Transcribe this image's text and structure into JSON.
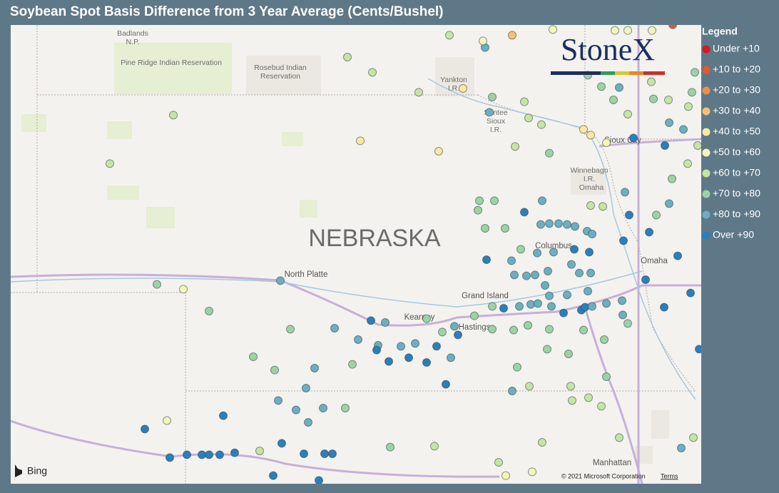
{
  "title": "Soybean Spot Basis Difference from 3 Year Average (Cents/Bushel)",
  "legend": {
    "title": "Legend",
    "items": [
      {
        "label": "Under +10",
        "color": "#d7191c"
      },
      {
        "label": "+10 to +20",
        "color": "#e8562c"
      },
      {
        "label": "+20 to +30",
        "color": "#f28e47"
      },
      {
        "label": "+30 to +40",
        "color": "#f6c172"
      },
      {
        "label": "+40 to +50",
        "color": "#fbe89e"
      },
      {
        "label": "+50 to +60",
        "color": "#f3f6b6"
      },
      {
        "label": "+60 to +70",
        "color": "#c6e5a1"
      },
      {
        "label": "+70 to +80",
        "color": "#9cd3a4"
      },
      {
        "label": "+80 to +90",
        "color": "#6cafbf"
      },
      {
        "label": "Over +90",
        "color": "#2b7fba"
      }
    ]
  },
  "map": {
    "logo": "StoneX",
    "provider": "Bing",
    "attribution": "© 2021 Microsoft Corporation",
    "terms": "Terms",
    "state": "NEBRASKA",
    "labels": [
      "Badlands",
      "N.P.",
      "Pine Ridge Indian Reservation",
      "Rosebud Indian",
      "Reservation",
      "Yankton",
      "I.R.",
      "Santee",
      "Sioux",
      "I.R.",
      "Sioux City",
      "Winnebago",
      "I.R.",
      "Omaha",
      "Columbus",
      "Omaha",
      "North Platte",
      "Grand Island",
      "Kearney",
      "Hastings",
      "Manhattan"
    ],
    "dots": [
      [
        -101.07,
        41.05,
        8
      ],
      [
        -102.43,
        40.96,
        5
      ],
      [
        -102.8,
        41.01,
        7
      ],
      [
        -102.07,
        40.73,
        7
      ],
      [
        -102.57,
        42.79,
        6
      ],
      [
        -103.46,
        42.28,
        6
      ],
      [
        -100.13,
        43.4,
        6
      ],
      [
        -99.78,
        43.24,
        6
      ],
      [
        -99.95,
        42.52,
        4
      ],
      [
        -98.85,
        42.41,
        4
      ],
      [
        -98.51,
        43.07,
        4
      ],
      [
        -99.13,
        43.03,
        6
      ],
      [
        -98.1,
        42.98,
        7
      ],
      [
        -98.2,
        43.5,
        8
      ],
      [
        -97.82,
        43.63,
        3
      ],
      [
        -97.65,
        42.93,
        6
      ],
      [
        -98.14,
        42.82,
        8
      ],
      [
        -99.8,
        40.63,
        9
      ],
      [
        -99.6,
        40.61,
        8
      ],
      [
        -99.98,
        40.43,
        8
      ],
      [
        -99.55,
        40.2,
        9
      ],
      [
        -99.27,
        40.24,
        9
      ],
      [
        -98.75,
        39.96,
        9
      ],
      [
        -98.58,
        40.48,
        9
      ],
      [
        -98.18,
        41.27,
        9
      ],
      [
        -97.65,
        41.77,
        9
      ],
      [
        -97.4,
        41.89,
        8
      ],
      [
        -96.95,
        41.38,
        9
      ],
      [
        -96.74,
        41.35,
        9
      ],
      [
        -96.18,
        41.74,
        9
      ],
      [
        -96.26,
        41.47,
        9
      ],
      [
        -95.9,
        41.56,
        9
      ],
      [
        -95.68,
        42.47,
        9
      ],
      [
        -95.5,
        41.31,
        9
      ],
      [
        -95.32,
        40.92,
        9
      ],
      [
        -95.69,
        40.77,
        9
      ],
      [
        -95.95,
        41.06,
        9
      ],
      [
        -96.12,
        42.55,
        9
      ],
      [
        -101.87,
        39.63,
        9
      ],
      [
        -102.97,
        39.49,
        9
      ],
      [
        -102.62,
        39.19,
        9
      ],
      [
        -102.38,
        39.22,
        9
      ],
      [
        -102.17,
        39.22,
        9
      ],
      [
        -102.07,
        39.22,
        9
      ],
      [
        -101.92,
        39.22,
        9
      ],
      [
        -101.71,
        39.24,
        9
      ],
      [
        -101.05,
        39.34,
        9
      ],
      [
        -101.17,
        39.0,
        9
      ],
      [
        -100.53,
        38.95,
        9
      ],
      [
        -100.74,
        39.23,
        9
      ],
      [
        -100.45,
        39.23,
        9
      ],
      [
        -100.34,
        39.23,
        9
      ],
      [
        -100.85,
        39.69,
        8
      ],
      [
        -100.47,
        39.71,
        8
      ],
      [
        -100.68,
        39.56,
        8
      ],
      [
        -100.31,
        40.55,
        8
      ],
      [
        -100.59,
        40.13,
        8
      ],
      [
        -100.71,
        39.92,
        8
      ],
      [
        -101.1,
        39.79,
        8
      ],
      [
        -101.45,
        40.25,
        7
      ],
      [
        -101.15,
        40.11,
        7
      ],
      [
        -100.93,
        40.54,
        7
      ],
      [
        -100.16,
        39.71,
        7
      ],
      [
        -100.06,
        40.17,
        7
      ],
      [
        -101.36,
        39.26,
        6
      ],
      [
        -102.66,
        39.58,
        5
      ],
      [
        -99.53,
        39.3,
        7
      ],
      [
        -98.91,
        39.31,
        6
      ],
      [
        -97.91,
        39.0,
        5
      ],
      [
        -97.54,
        39.04,
        5
      ],
      [
        -97.33,
        40.33,
        7
      ],
      [
        -97.03,
        40.28,
        7
      ],
      [
        -97.82,
        39.89,
        8
      ],
      [
        -97.58,
        39.94,
        6
      ],
      [
        -97.0,
        39.94,
        6
      ],
      [
        -96.75,
        39.82,
        6
      ],
      [
        -96.98,
        39.79,
        6
      ],
      [
        -96.57,
        39.73,
        6
      ],
      [
        -96.32,
        39.4,
        6
      ],
      [
        -95.45,
        39.29,
        8
      ],
      [
        -95.2,
        40.33,
        9
      ],
      [
        -95.28,
        39.4,
        6
      ],
      [
        -97.4,
        39.35,
        6
      ],
      [
        -98.01,
        39.14,
        6
      ],
      [
        -97.75,
        40.14,
        7
      ],
      [
        -96.5,
        40.04,
        7
      ],
      [
        -96.2,
        40.6,
        7
      ],
      [
        -96.53,
        40.43,
        7
      ],
      [
        -96.82,
        40.53,
        7
      ],
      [
        -97.3,
        40.54,
        7
      ],
      [
        -97.6,
        40.58,
        7
      ],
      [
        -97.8,
        40.53,
        7
      ],
      [
        -98.1,
        40.54,
        7
      ],
      [
        -98.35,
        40.68,
        7
      ],
      [
        -98.1,
        40.78,
        7
      ],
      [
        -97.94,
        40.76,
        9
      ],
      [
        -97.72,
        40.78,
        8
      ],
      [
        -97.56,
        40.8,
        8
      ],
      [
        -97.46,
        40.81,
        8
      ],
      [
        -97.27,
        40.78,
        8
      ],
      [
        -96.85,
        40.74,
        9
      ],
      [
        -96.8,
        40.77,
        9
      ],
      [
        -96.7,
        40.78,
        8
      ],
      [
        -97.1,
        40.71,
        9
      ],
      [
        -97.05,
        40.9,
        8
      ],
      [
        -97.3,
        40.89,
        8
      ],
      [
        -97.36,
        41.0,
        8
      ],
      [
        -97.32,
        41.15,
        8
      ],
      [
        -97.5,
        41.11,
        8
      ],
      [
        -97.62,
        41.1,
        8
      ],
      [
        -97.79,
        41.11,
        8
      ],
      [
        -97.83,
        41.26,
        8
      ],
      [
        -97.7,
        41.38,
        7
      ],
      [
        -97.47,
        41.34,
        8
      ],
      [
        -97.24,
        41.35,
        8
      ],
      [
        -96.99,
        41.22,
        8
      ],
      [
        -96.88,
        41.13,
        8
      ],
      [
        -96.72,
        41.13,
        8
      ],
      [
        -96.76,
        40.94,
        8
      ],
      [
        -96.5,
        40.81,
        8
      ],
      [
        -96.27,
        40.69,
        8
      ],
      [
        -96.28,
        40.84,
        8
      ],
      [
        -97.42,
        41.64,
        8
      ],
      [
        -97.3,
        41.65,
        8
      ],
      [
        -97.17,
        41.65,
        8
      ],
      [
        -97.05,
        41.64,
        8
      ],
      [
        -96.94,
        41.62,
        8
      ],
      [
        -96.77,
        41.57,
        8
      ],
      [
        -96.7,
        41.54,
        8
      ],
      [
        -97.92,
        41.6,
        7
      ],
      [
        -98.28,
        41.89,
        7
      ],
      [
        -98.07,
        41.89,
        7
      ],
      [
        -98.3,
        41.79,
        7
      ],
      [
        -98.2,
        41.6,
        7
      ],
      [
        -97.3,
        42.39,
        7
      ],
      [
        -97.59,
        42.76,
        6
      ],
      [
        -97.41,
        42.69,
        6
      ],
      [
        -96.76,
        43.21,
        7
      ],
      [
        -96.57,
        43.09,
        7
      ],
      [
        -96.32,
        43.08,
        8
      ],
      [
        -96.4,
        42.95,
        7
      ],
      [
        -96.2,
        42.8,
        6
      ],
      [
        -95.84,
        42.96,
        7
      ],
      [
        -95.63,
        42.95,
        6
      ],
      [
        -95.87,
        43.14,
        6
      ],
      [
        -95.62,
        42.71,
        8
      ],
      [
        -95.42,
        42.64,
        8
      ],
      [
        -95.35,
        42.88,
        6
      ],
      [
        -95.58,
        42.12,
        7
      ],
      [
        -95.36,
        42.28,
        6
      ],
      [
        -95.22,
        42.47,
        6
      ],
      [
        -95.62,
        41.86,
        8
      ],
      [
        -95.8,
        41.74,
        7
      ],
      [
        -96.24,
        41.98,
        8
      ],
      [
        -96.55,
        41.83,
        6
      ],
      [
        -96.72,
        41.84,
        6
      ],
      [
        -96.82,
        42.64,
        4
      ],
      [
        -96.72,
        42.58,
        4
      ],
      [
        -96.5,
        42.5,
        5
      ],
      [
        -95.57,
        43.74,
        1
      ],
      [
        -95.26,
        43.24,
        7
      ],
      [
        -95.3,
        43.03,
        7
      ],
      [
        -98.7,
        43.63,
        6
      ],
      [
        -98.23,
        43.57,
        5
      ],
      [
        -97.25,
        43.69,
        5
      ],
      [
        -96.38,
        43.68,
        5
      ],
      [
        -96.2,
        43.68,
        5
      ],
      [
        -95.86,
        43.68,
        5
      ],
      [
        -97.78,
        42.46,
        6
      ],
      [
        -98.63,
        40.57,
        8
      ],
      [
        -98.8,
        40.51,
        7
      ],
      [
        -98.88,
        40.36,
        9
      ],
      [
        -98.68,
        40.24,
        8
      ],
      [
        -99.02,
        40.65,
        7
      ],
      [
        -99.18,
        40.39,
        8
      ],
      [
        -99.38,
        40.36,
        8
      ],
      [
        -99.7,
        40.37,
        8
      ],
      [
        -99.72,
        40.32,
        9
      ],
      [
        -99.02,
        40.19,
        9
      ]
    ]
  }
}
